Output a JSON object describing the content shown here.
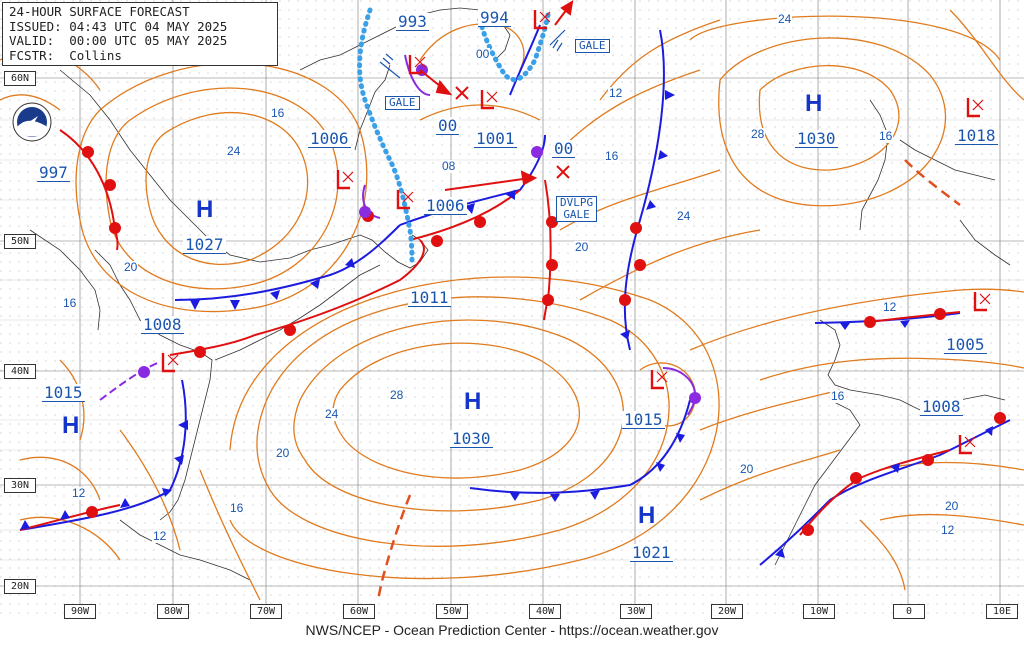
{
  "header": {
    "title": "24-HOUR SURFACE FORECAST",
    "issued": "ISSUED: 04:43 UTC 04 MAY 2025",
    "valid": "VALID:  00:00 UTC 05 MAY 2025",
    "forecaster": "FCSTR:  Collins"
  },
  "footer": "NWS/NCEP - Ocean Prediction Center - https://ocean.weather.gov",
  "lat_labels": [
    "60N",
    "50N",
    "40N",
    "30N",
    "20N"
  ],
  "lon_labels": [
    "90W",
    "80W",
    "70W",
    "60W",
    "50W",
    "40W",
    "30W",
    "20W",
    "10W",
    "0",
    "10E"
  ],
  "high_symbol": "H",
  "highs": [
    {
      "pressure": "1027"
    },
    {
      "pressure": "1030"
    },
    {
      "pressure": "1030"
    },
    {
      "pressure": "1021"
    },
    {
      "pressure": ""
    }
  ],
  "low_pressures": [
    "997",
    "993",
    "994",
    "1006",
    "1001",
    "1006",
    "1011",
    "1008",
    "1015",
    "1015",
    "1018",
    "1005",
    "1008"
  ],
  "forecast_lows": [
    "00",
    "00"
  ],
  "isobar_labels": [
    "24",
    "24",
    "28",
    "16",
    "16",
    "12",
    "16",
    "20",
    "08",
    "20",
    "16",
    "20",
    "28",
    "24",
    "20",
    "16",
    "12",
    "12",
    "00",
    "12",
    "16",
    "20",
    "12",
    "24"
  ],
  "warnings": {
    "gale": "GALE",
    "dvlpg": "DVLPG",
    "dvlpg_gale": "GALE"
  },
  "colors": {
    "isobar": "#e07b1f",
    "cold_front": "#1c1ce0",
    "warm_front": "#e01010",
    "occluded": "#8a2be2",
    "ice": "#3aa0e8",
    "grid": "#555555",
    "text": "#1a56b0"
  }
}
